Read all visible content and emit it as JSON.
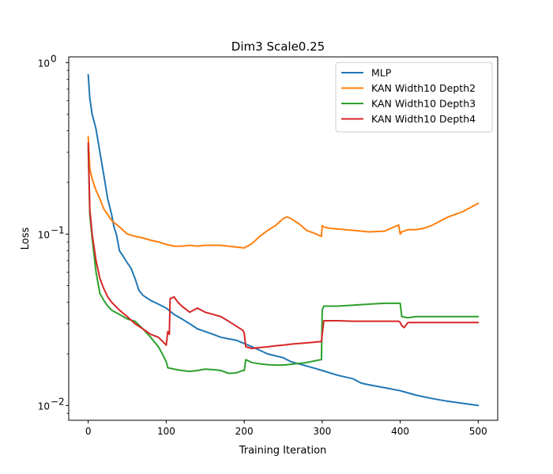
{
  "chart_data": {
    "type": "line",
    "title": "Dim3 Scale0.25",
    "xlabel": "Training Iteration",
    "ylabel": "Loss",
    "yscale": "log",
    "xlim": [
      -25,
      525
    ],
    "ylim": [
      0.0082,
      1.08
    ],
    "x_ticks": [
      0,
      100,
      200,
      300,
      400,
      500
    ],
    "x_tick_labels": [
      "0",
      "100",
      "200",
      "300",
      "400",
      "500"
    ],
    "y_ticks": [
      0.01,
      0.1,
      1
    ],
    "y_tick_labels": [
      "10",
      "10",
      "10"
    ],
    "y_tick_exponents": [
      "−2",
      "−1",
      "0"
    ],
    "legend_position": "top-right",
    "series": [
      {
        "name": "MLP",
        "color": "#1f77b4",
        "x": [
          0,
          2,
          5,
          10,
          15,
          20,
          25,
          30,
          33,
          36,
          38,
          40,
          45,
          50,
          55,
          60,
          65,
          70,
          80,
          90,
          100,
          110,
          120,
          130,
          140,
          150,
          160,
          170,
          180,
          190,
          200,
          210,
          220,
          230,
          240,
          250,
          260,
          270,
          280,
          290,
          300,
          320,
          340,
          350,
          360,
          380,
          400,
          420,
          440,
          460,
          480,
          500
        ],
        "y": [
          0.85,
          0.62,
          0.5,
          0.41,
          0.3,
          0.22,
          0.16,
          0.13,
          0.11,
          0.1,
          0.09,
          0.08,
          0.074,
          0.068,
          0.063,
          0.055,
          0.047,
          0.044,
          0.041,
          0.039,
          0.037,
          0.034,
          0.032,
          0.03,
          0.028,
          0.027,
          0.026,
          0.025,
          0.0245,
          0.024,
          0.023,
          0.022,
          0.021,
          0.02,
          0.0195,
          0.019,
          0.018,
          0.0175,
          0.017,
          0.0165,
          0.016,
          0.015,
          0.0143,
          0.0135,
          0.0132,
          0.0127,
          0.0122,
          0.0115,
          0.011,
          0.0106,
          0.0103,
          0.01
        ]
      },
      {
        "name": "KAN Width10 Depth2",
        "color": "#ff7f0e",
        "x": [
          0,
          2,
          5,
          10,
          15,
          20,
          25,
          30,
          35,
          40,
          50,
          60,
          70,
          80,
          90,
          100,
          110,
          120,
          130,
          140,
          150,
          160,
          170,
          180,
          190,
          200,
          210,
          220,
          230,
          240,
          250,
          255,
          260,
          270,
          280,
          290,
          299,
          300,
          302,
          310,
          320,
          340,
          360,
          380,
          398,
          400,
          402,
          410,
          420,
          430,
          440,
          460,
          480,
          500
        ],
        "y": [
          0.37,
          0.24,
          0.21,
          0.18,
          0.16,
          0.14,
          0.13,
          0.12,
          0.115,
          0.11,
          0.1,
          0.097,
          0.095,
          0.092,
          0.09,
          0.087,
          0.085,
          0.085,
          0.086,
          0.085,
          0.086,
          0.086,
          0.086,
          0.085,
          0.084,
          0.083,
          0.088,
          0.097,
          0.105,
          0.112,
          0.123,
          0.126,
          0.123,
          0.115,
          0.105,
          0.101,
          0.097,
          0.112,
          0.11,
          0.108,
          0.107,
          0.105,
          0.103,
          0.104,
          0.113,
          0.1,
          0.103,
          0.106,
          0.106,
          0.108,
          0.112,
          0.125,
          0.135,
          0.151
        ]
      },
      {
        "name": "KAN Width10 Depth3",
        "color": "#2ca02c",
        "x": [
          0,
          2,
          5,
          10,
          15,
          20,
          25,
          30,
          40,
          50,
          60,
          70,
          80,
          90,
          95,
          100,
          102,
          110,
          120,
          130,
          140,
          150,
          160,
          170,
          180,
          190,
          198,
          200,
          202,
          210,
          220,
          230,
          240,
          250,
          260,
          270,
          280,
          290,
          298,
          299,
          300,
          302,
          310,
          320,
          340,
          360,
          380,
          398,
          400,
          402,
          410,
          420,
          440,
          460,
          480,
          500
        ],
        "y": [
          0.32,
          0.13,
          0.095,
          0.06,
          0.045,
          0.041,
          0.038,
          0.036,
          0.034,
          0.032,
          0.031,
          0.028,
          0.025,
          0.022,
          0.02,
          0.018,
          0.0166,
          0.0163,
          0.016,
          0.0158,
          0.016,
          0.0163,
          0.0162,
          0.016,
          0.0154,
          0.0155,
          0.016,
          0.016,
          0.0185,
          0.0178,
          0.0175,
          0.0173,
          0.0172,
          0.0172,
          0.0174,
          0.0176,
          0.0178,
          0.0182,
          0.0185,
          0.0185,
          0.036,
          0.038,
          0.038,
          0.038,
          0.0385,
          0.039,
          0.0395,
          0.0395,
          0.0395,
          0.033,
          0.0325,
          0.033,
          0.033,
          0.033,
          0.033,
          0.033
        ]
      },
      {
        "name": "KAN Width10 Depth4",
        "color": "#d62728",
        "x": [
          0,
          2,
          5,
          10,
          15,
          20,
          25,
          30,
          40,
          50,
          60,
          70,
          80,
          90,
          98,
          100,
          102,
          104,
          105,
          110,
          115,
          120,
          130,
          140,
          150,
          160,
          170,
          180,
          190,
          198,
          200,
          202,
          210,
          220,
          230,
          240,
          250,
          260,
          270,
          280,
          290,
          298,
          299,
          300,
          302,
          310,
          320,
          340,
          360,
          380,
          398,
          400,
          402,
          405,
          410,
          420,
          440,
          460,
          480,
          500
        ],
        "y": [
          0.34,
          0.14,
          0.1,
          0.07,
          0.055,
          0.048,
          0.043,
          0.04,
          0.036,
          0.033,
          0.03,
          0.028,
          0.026,
          0.025,
          0.023,
          0.0225,
          0.027,
          0.026,
          0.042,
          0.043,
          0.04,
          0.038,
          0.035,
          0.037,
          0.035,
          0.034,
          0.033,
          0.031,
          0.029,
          0.0275,
          0.0265,
          0.022,
          0.0215,
          0.0218,
          0.022,
          0.0223,
          0.0225,
          0.0228,
          0.023,
          0.0232,
          0.0234,
          0.0236,
          0.0236,
          0.026,
          0.0312,
          0.0312,
          0.0312,
          0.031,
          0.031,
          0.031,
          0.031,
          0.0305,
          0.0292,
          0.0285,
          0.0305,
          0.0305,
          0.0305,
          0.0305,
          0.0305,
          0.0305
        ]
      }
    ]
  }
}
